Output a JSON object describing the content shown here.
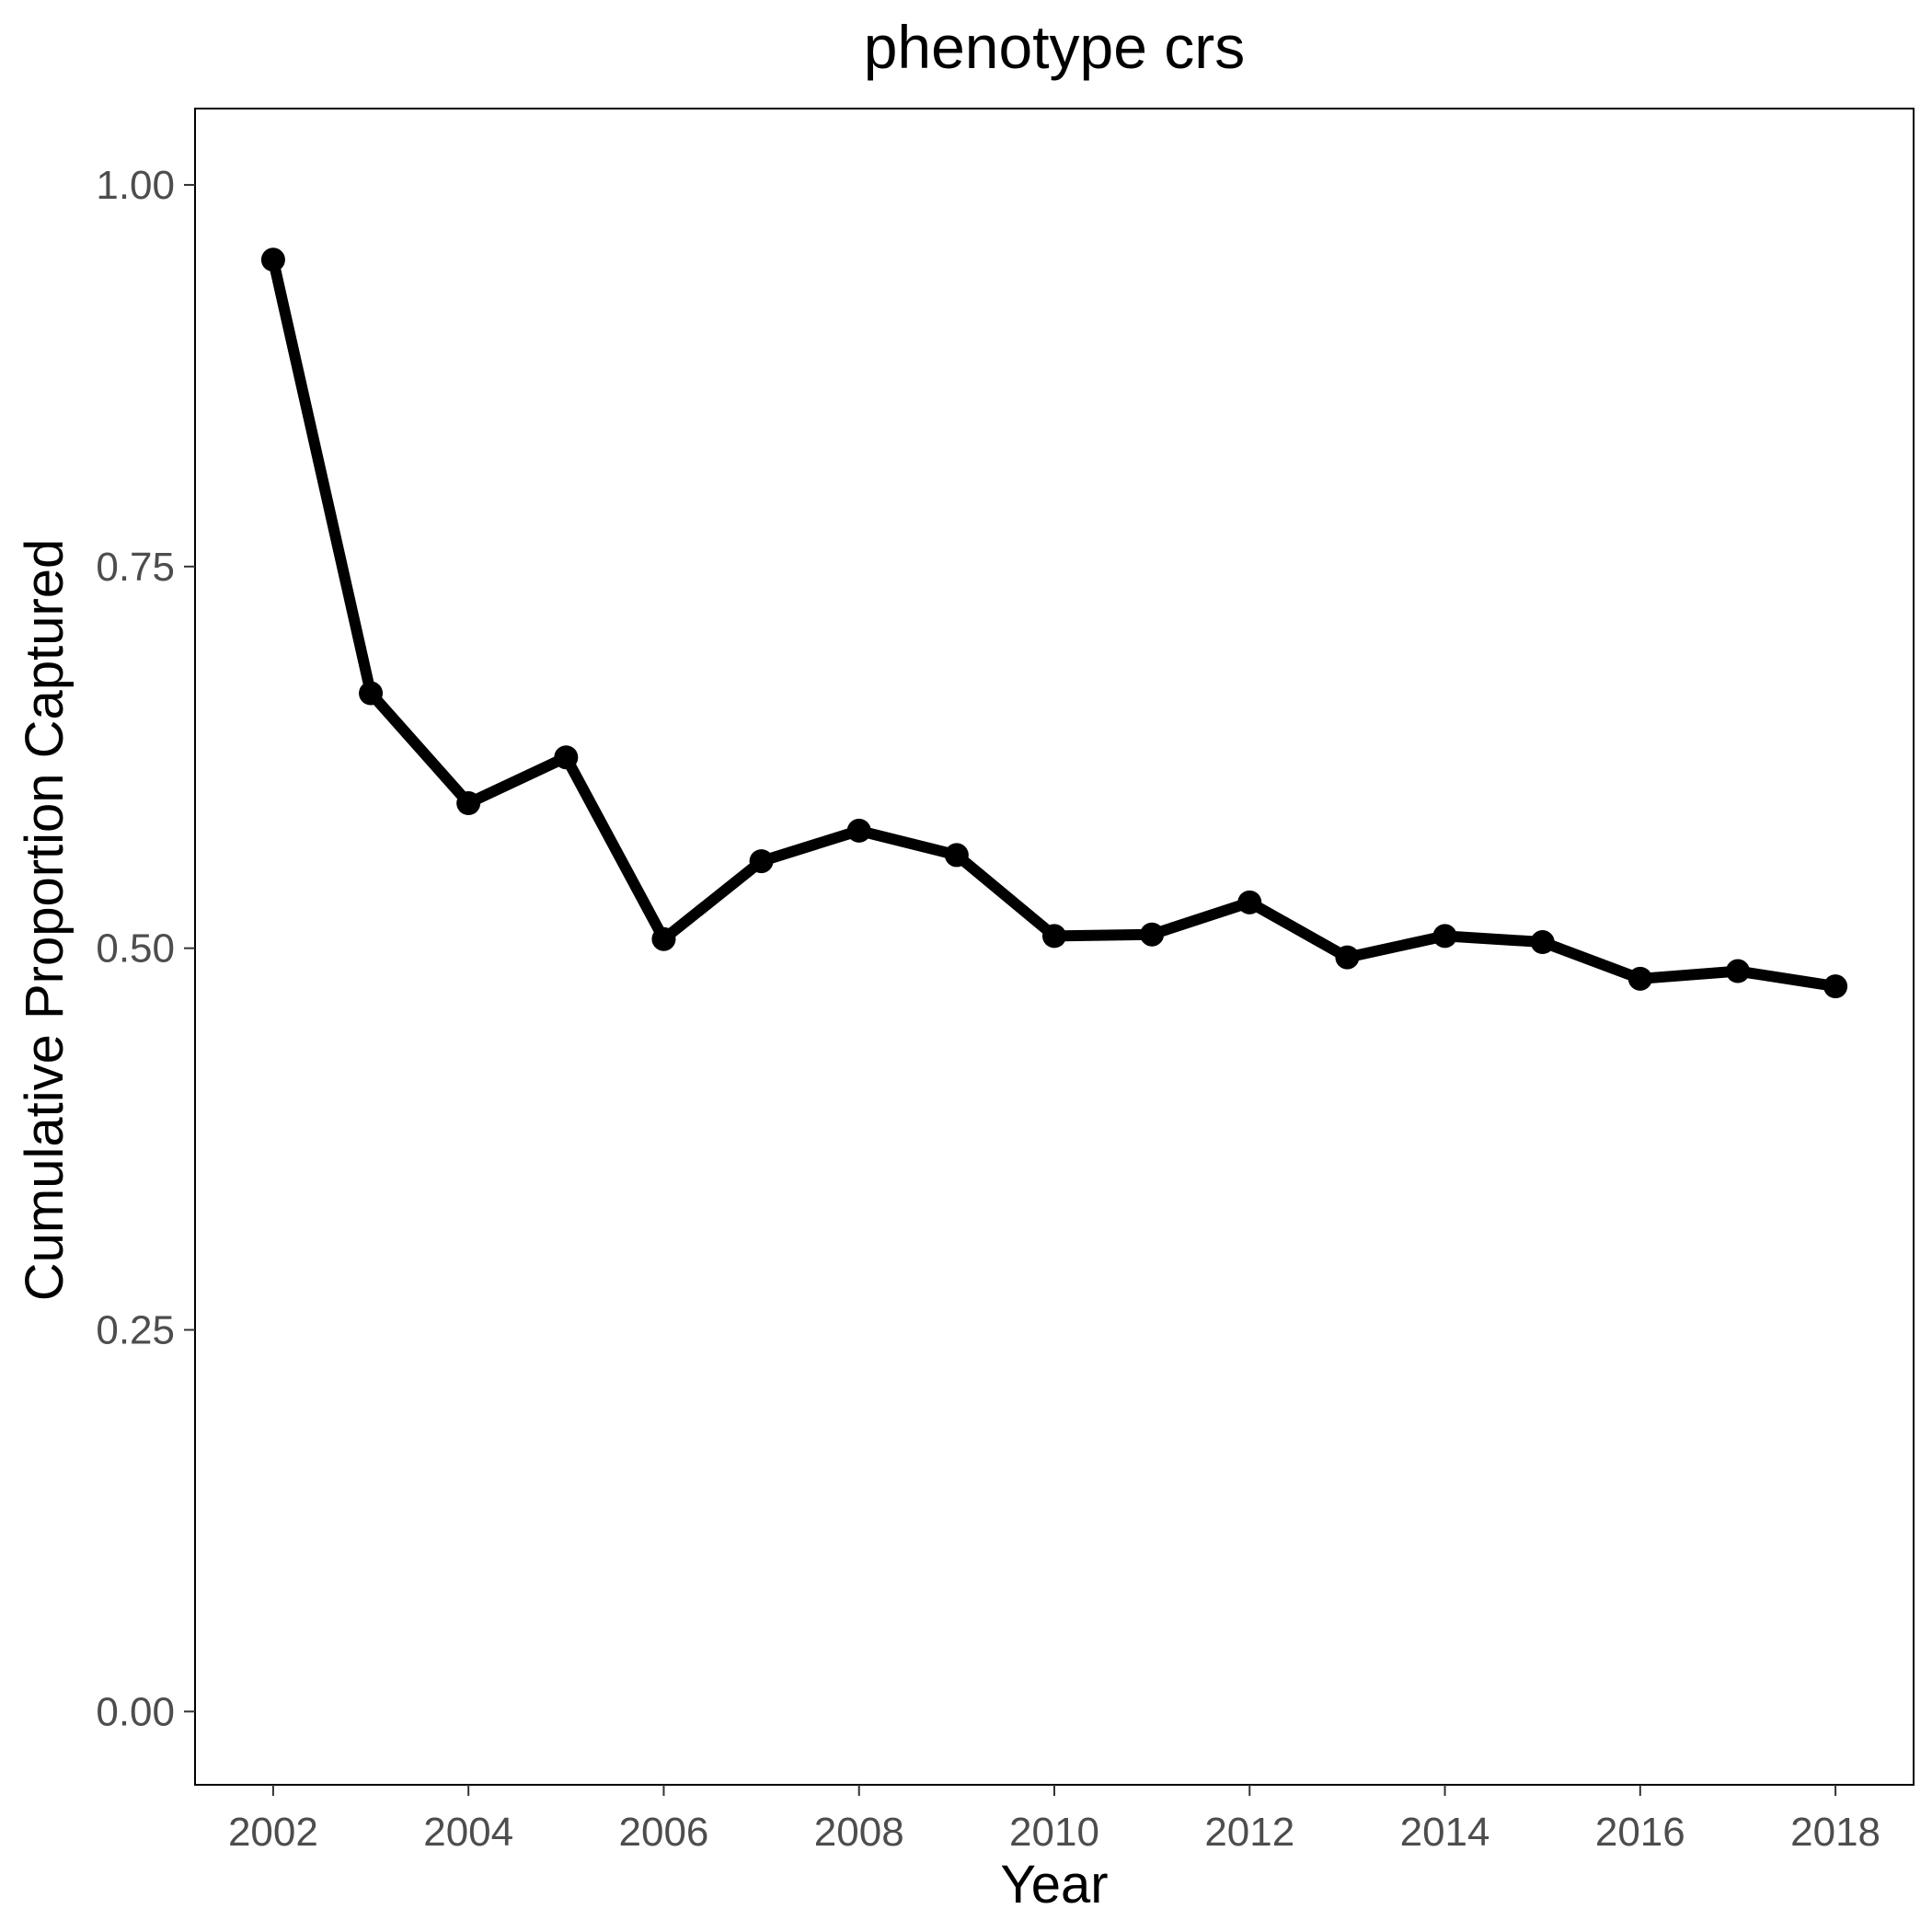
{
  "chart_data": {
    "type": "line",
    "title": "phenotype crs",
    "xlabel": "Year",
    "ylabel": "Cumulative Proportion Captured",
    "x": [
      2002,
      2003,
      2004,
      2005,
      2006,
      2007,
      2008,
      2009,
      2010,
      2011,
      2012,
      2013,
      2014,
      2015,
      2016,
      2017,
      2018
    ],
    "y": [
      0.951,
      0.667,
      0.595,
      0.625,
      0.506,
      0.557,
      0.577,
      0.561,
      0.508,
      0.509,
      0.53,
      0.494,
      0.508,
      0.504,
      0.48,
      0.485,
      0.475
    ],
    "xlim": [
      2001.2,
      2018.8
    ],
    "ylim": [
      -0.048,
      1.05
    ],
    "x_ticks": [
      2002,
      2004,
      2006,
      2008,
      2010,
      2012,
      2014,
      2016,
      2018
    ],
    "x_tick_labels": [
      "2002",
      "2004",
      "2006",
      "2008",
      "2010",
      "2012",
      "2014",
      "2016",
      "2018"
    ],
    "y_ticks": [
      0,
      0.25,
      0.5,
      0.75,
      1
    ],
    "y_tick_labels": [
      "0.00",
      "0.25",
      "0.50",
      "0.75",
      "1.00"
    ],
    "line_color": "#000000",
    "grid": false,
    "legend": "none"
  }
}
